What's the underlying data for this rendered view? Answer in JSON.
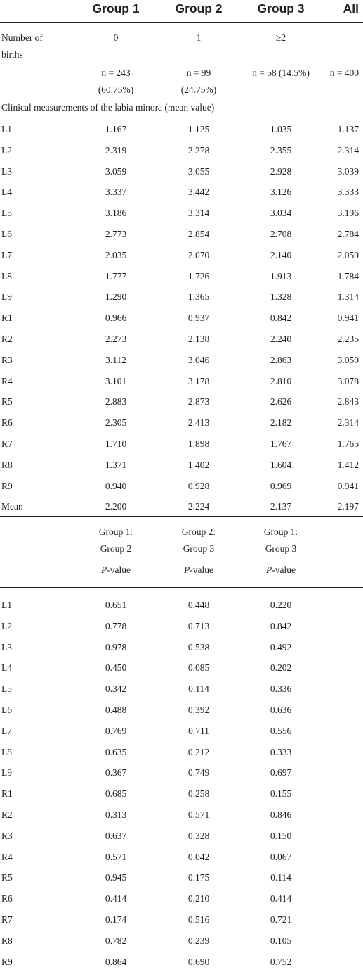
{
  "header": {
    "col1": "Group 1",
    "col2": "Group 2",
    "col3": "Group 3",
    "col4": "All"
  },
  "births": {
    "label_line1": "Number of",
    "label_line2": "births",
    "g1": "0",
    "g2": "1",
    "g3": "≥2"
  },
  "counts": {
    "g1_line1": "n = 243",
    "g1_line2": "(60.75%)",
    "g2_line1": "n = 99",
    "g2_line2": "(24.75%)",
    "g3": "n = 58 (14.5%)",
    "all": "n = 400"
  },
  "section_title": "Clinical measurements of the labia minora (mean value)",
  "means": [
    {
      "label": "L1",
      "g1": "1.167",
      "g2": "1.125",
      "g3": "1.035",
      "all": "1.137"
    },
    {
      "label": "L2",
      "g1": "2.319",
      "g2": "2.278",
      "g3": "2.355",
      "all": "2.314"
    },
    {
      "label": "L3",
      "g1": "3.059",
      "g2": "3.055",
      "g3": "2.928",
      "all": "3.039"
    },
    {
      "label": "L4",
      "g1": "3.337",
      "g2": "3.442",
      "g3": "3.126",
      "all": "3.333"
    },
    {
      "label": "L5",
      "g1": "3.186",
      "g2": "3.314",
      "g3": "3.034",
      "all": "3.196"
    },
    {
      "label": "L6",
      "g1": "2.773",
      "g2": "2.854",
      "g3": "2.708",
      "all": "2.784"
    },
    {
      "label": "L7",
      "g1": "2.035",
      "g2": "2.070",
      "g3": "2.140",
      "all": "2.059"
    },
    {
      "label": "L8",
      "g1": "1.777",
      "g2": "1.726",
      "g3": "1.913",
      "all": "1.784"
    },
    {
      "label": "L9",
      "g1": "1.290",
      "g2": "1.365",
      "g3": "1.328",
      "all": "1.314"
    },
    {
      "label": "R1",
      "g1": "0.966",
      "g2": "0.937",
      "g3": "0.842",
      "all": "0.941"
    },
    {
      "label": "R2",
      "g1": "2.273",
      "g2": "2.138",
      "g3": "2.240",
      "all": "2.235"
    },
    {
      "label": "R3",
      "g1": "3.112",
      "g2": "3.046",
      "g3": "2.863",
      "all": "3.059"
    },
    {
      "label": "R4",
      "g1": "3.101",
      "g2": "3.178",
      "g3": "2.810",
      "all": "3.078"
    },
    {
      "label": "R5",
      "g1": "2.883",
      "g2": "2.873",
      "g3": "2.626",
      "all": "2.843"
    },
    {
      "label": "R6",
      "g1": "2.305",
      "g2": "2.413",
      "g3": "2.182",
      "all": "2.314"
    },
    {
      "label": "R7",
      "g1": "1.710",
      "g2": "1.898",
      "g3": "1.767",
      "all": "1.765"
    },
    {
      "label": "R8",
      "g1": "1.371",
      "g2": "1.402",
      "g3": "1.604",
      "all": "1.412"
    },
    {
      "label": "R9",
      "g1": "0.940",
      "g2": "0.928",
      "g3": "0.969",
      "all": "0.941"
    },
    {
      "label": "Mean",
      "g1": "2.200",
      "g2": "2.224",
      "g3": "2.137",
      "all": "2.197"
    }
  ],
  "comparison_header": {
    "c1_line1": "Group 1:",
    "c1_line2": "Group 2",
    "c2_line1": "Group 2:",
    "c2_line2": "Group 3",
    "c3_line1": "Group 1:",
    "c3_line2": "Group 3",
    "p_italic": "P",
    "p_suffix": "-value"
  },
  "pvalues": [
    {
      "label": "L1",
      "c1": "0.651",
      "c2": "0.448",
      "c3": "0.220"
    },
    {
      "label": "L2",
      "c1": "0.778",
      "c2": "0.713",
      "c3": "0.842"
    },
    {
      "label": "L3",
      "c1": "0.978",
      "c2": "0.538",
      "c3": "0.492"
    },
    {
      "label": "L4",
      "c1": "0.450",
      "c2": "0.085",
      "c3": "0.202"
    },
    {
      "label": "L5",
      "c1": "0.342",
      "c2": "0.114",
      "c3": "0.336"
    },
    {
      "label": "L6",
      "c1": "0.488",
      "c2": "0.392",
      "c3": "0.636"
    },
    {
      "label": "L7",
      "c1": "0.769",
      "c2": "0.711",
      "c3": "0.556"
    },
    {
      "label": "L8",
      "c1": "0.635",
      "c2": "0.212",
      "c3": "0.333"
    },
    {
      "label": "L9",
      "c1": "0.367",
      "c2": "0.749",
      "c3": "0.697"
    },
    {
      "label": "R1",
      "c1": "0.685",
      "c2": "0.258",
      "c3": "0.155"
    },
    {
      "label": "R2",
      "c1": "0.313",
      "c2": "0.571",
      "c3": "0.846"
    },
    {
      "label": "R3",
      "c1": "0.637",
      "c2": "0.328",
      "c3": "0.150"
    },
    {
      "label": "R4",
      "c1": "0.571",
      "c2": "0.042",
      "c3": "0.067"
    },
    {
      "label": "R5",
      "c1": "0.945",
      "c2": "0.175",
      "c3": "0.114"
    },
    {
      "label": "R6",
      "c1": "0.414",
      "c2": "0.210",
      "c3": "0.414"
    },
    {
      "label": "R7",
      "c1": "0.174",
      "c2": "0.516",
      "c3": "0.721"
    },
    {
      "label": "R8",
      "c1": "0.782",
      "c2": "0.239",
      "c3": "0.105"
    },
    {
      "label": "R9",
      "c1": "0.864",
      "c2": "0.690",
      "c3": "0.752"
    }
  ]
}
